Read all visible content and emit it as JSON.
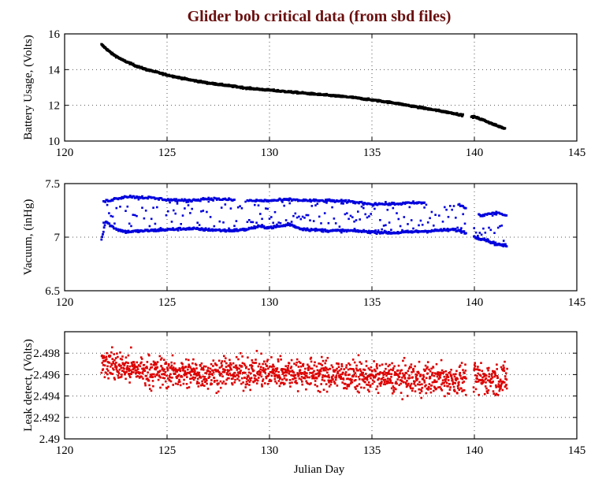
{
  "chart_data": {
    "type": "scatter",
    "title": "Glider bob critical data (from sbd files)",
    "title_color": "#6b0f0f",
    "xlabel": "Julian Day",
    "xlim": [
      120,
      145
    ],
    "xticks": [
      120,
      125,
      130,
      135,
      140,
      145
    ],
    "grid": true,
    "panels": [
      {
        "name": "battery",
        "ylabel": "Battery Usage, (Volts)",
        "ylim": [
          10,
          16
        ],
        "yticks": [
          10,
          12,
          14,
          16
        ],
        "ytick_labels": [
          "10",
          "12",
          "14",
          "16"
        ],
        "color": "#000000",
        "x": [
          121.8,
          122.0,
          122.3,
          122.8,
          123.5,
          124.0,
          125.0,
          126.0,
          127.0,
          128.0,
          129.0,
          130.0,
          131.0,
          132.0,
          133.0,
          134.0,
          135.0,
          136.0,
          137.0,
          138.0,
          139.0,
          139.4,
          140.0,
          140.5,
          141.0,
          141.5
        ],
        "y": [
          15.4,
          15.2,
          14.9,
          14.55,
          14.2,
          14.0,
          13.7,
          13.45,
          13.25,
          13.1,
          12.95,
          12.85,
          12.75,
          12.65,
          12.55,
          12.45,
          12.3,
          12.15,
          11.95,
          11.75,
          11.55,
          11.45,
          11.35,
          11.15,
          10.9,
          10.7
        ]
      },
      {
        "name": "vacuum",
        "ylabel": "Vacuum, (inHg)",
        "ylim": [
          6.5,
          7.5
        ],
        "yticks": [
          6.5,
          7,
          7.5
        ],
        "ytick_labels": [
          "6.5",
          "7",
          "7.5"
        ],
        "color": "#0000dd",
        "series": [
          {
            "name": "lower band",
            "x": [
              121.8,
              122.0,
              122.3,
              122.6,
              123.0,
              124.0,
              125.0,
              126.0,
              127.0,
              128.0,
              128.8,
              129.5,
              130.0,
              130.5,
              131.0,
              131.5,
              132.0,
              133.0,
              134.0,
              135.0,
              136.0,
              137.0,
              138.0,
              139.0,
              139.5,
              140.0,
              140.5,
              141.0,
              141.5
            ],
            "y": [
              6.98,
              7.15,
              7.1,
              7.07,
              7.05,
              7.06,
              7.07,
              7.08,
              7.07,
              7.06,
              7.07,
              7.1,
              7.09,
              7.1,
              7.12,
              7.08,
              7.07,
              7.06,
              7.06,
              7.05,
              7.04,
              7.05,
              7.06,
              7.07,
              7.05,
              7.0,
              6.98,
              6.94,
              6.92
            ]
          },
          {
            "name": "upper band",
            "x": [
              121.9,
              122.5,
              123.0,
              124.0,
              125.0,
              126.0,
              127.0,
              128.0,
              129.0,
              130.0,
              131.0,
              132.0,
              133.0,
              134.0,
              135.0,
              136.0,
              137.0,
              137.5,
              139.3,
              140.3,
              140.8,
              141.2,
              141.5
            ],
            "y": [
              7.33,
              7.36,
              7.38,
              7.37,
              7.35,
              7.34,
              7.36,
              7.35,
              7.34,
              7.34,
              7.35,
              7.34,
              7.34,
              7.33,
              7.31,
              7.31,
              7.32,
              7.32,
              7.3,
              7.2,
              7.22,
              7.23,
              7.2
            ]
          }
        ]
      },
      {
        "name": "leak",
        "ylabel": "Leak detect, (Volts)",
        "ylim": [
          2.49,
          2.5
        ],
        "yticks": [
          2.49,
          2.492,
          2.494,
          2.496,
          2.498
        ],
        "ytick_labels": [
          "2.49",
          "2.492",
          "2.494",
          "2.496",
          "2.498"
        ],
        "color": "#dd0000",
        "x": [
          121.8,
          122.5,
          123.0,
          124.0,
          125.0,
          126.0,
          127.0,
          128.0,
          129.0,
          130.0,
          131.0,
          132.0,
          133.0,
          134.0,
          135.0,
          136.0,
          137.0,
          138.0,
          139.0,
          139.5,
          140.0,
          140.5,
          141.0,
          141.5
        ],
        "y": [
          2.4973,
          2.4968,
          2.4966,
          2.4963,
          2.4962,
          2.4961,
          2.4961,
          2.4962,
          2.4962,
          2.4962,
          2.4962,
          2.4961,
          2.496,
          2.4959,
          2.4958,
          2.4957,
          2.4956,
          2.4956,
          2.4955,
          2.4956,
          2.4956,
          2.4956,
          2.4956,
          2.4956
        ],
        "spread": 0.0014
      }
    ]
  }
}
